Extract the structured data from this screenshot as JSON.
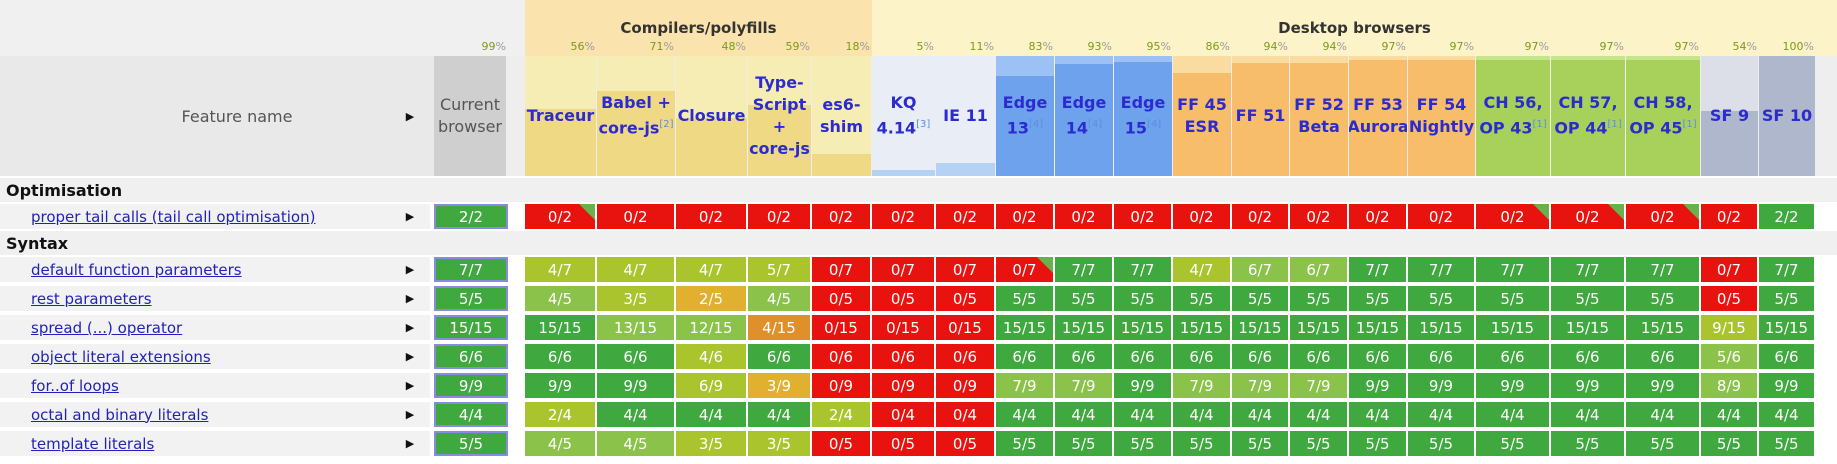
{
  "header": {
    "feature_name_label": "Feature name",
    "feature_name_arrow": "▶",
    "current_browser_label": "Current browser",
    "current_browser_pct": "99",
    "pct_symbol": "%",
    "groups": [
      {
        "name": "Compilers/polyfills"
      },
      {
        "name": "Desktop browsers"
      }
    ]
  },
  "columns": [
    {
      "label": "Traceur",
      "sup": "",
      "pct": "56",
      "fill": 0.56
    },
    {
      "label": "Babel + core-js",
      "sup": "[2]",
      "pct": "71",
      "fill": 0.71
    },
    {
      "label": "Closure",
      "sup": "",
      "pct": "48",
      "fill": 0.48
    },
    {
      "label": "Type-Script + core-js",
      "sup": "",
      "pct": "59",
      "fill": 0.59
    },
    {
      "label": "es6-shim",
      "sup": "",
      "pct": "18",
      "fill": 0.18
    },
    {
      "label": "KQ 4.14",
      "sup": "[3]",
      "pct": "5",
      "fill": 0.05
    },
    {
      "label": "IE 11",
      "sup": "",
      "pct": "11",
      "fill": 0.11
    },
    {
      "label": "Edge 13",
      "sup": "[4]",
      "pct": "83",
      "fill": 0.83
    },
    {
      "label": "Edge 14",
      "sup": "[4]",
      "pct": "93",
      "fill": 0.93
    },
    {
      "label": "Edge 15",
      "sup": "[4]",
      "pct": "95",
      "fill": 0.95
    },
    {
      "label": "FF 45 ESR",
      "sup": "",
      "pct": "86",
      "fill": 0.86
    },
    {
      "label": "FF 51",
      "sup": "",
      "pct": "94",
      "fill": 0.94
    },
    {
      "label": "FF 52 Beta",
      "sup": "",
      "pct": "94",
      "fill": 0.94
    },
    {
      "label": "FF 53 Aurora",
      "sup": "",
      "pct": "97",
      "fill": 0.97
    },
    {
      "label": "FF 54 Nightly",
      "sup": "",
      "pct": "97",
      "fill": 0.97
    },
    {
      "label": "CH 56, OP 43",
      "sup": "[1]",
      "pct": "97",
      "fill": 0.97
    },
    {
      "label": "CH 57, OP 44",
      "sup": "[1]",
      "pct": "97",
      "fill": 0.97
    },
    {
      "label": "CH 58, OP 45",
      "sup": "[1]",
      "pct": "97",
      "fill": 0.97
    },
    {
      "label": "SF 9",
      "sup": "",
      "pct": "54",
      "fill": 0.54
    },
    {
      "label": "SF 10",
      "sup": "",
      "pct": "100",
      "fill": 1.0
    }
  ],
  "sections": [
    {
      "title": "Optimisation",
      "rows": [
        {
          "name": "proper tail calls (tail call optimisation)",
          "current": "2/2",
          "values": [
            "0/2",
            "0/2",
            "0/2",
            "0/2",
            "0/2",
            "0/2",
            "0/2",
            "0/2",
            "0/2",
            "0/2",
            "0/2",
            "0/2",
            "0/2",
            "0/2",
            "0/2",
            "0/2",
            "0/2",
            "0/2",
            "0/2",
            "2/2"
          ]
        }
      ]
    },
    {
      "title": "Syntax",
      "rows": [
        {
          "name": "default function parameters",
          "current": "7/7",
          "values": [
            "4/7",
            "4/7",
            "4/7",
            "5/7",
            "0/7",
            "0/7",
            "0/7",
            "0/7",
            "7/7",
            "7/7",
            "4/7",
            "6/7",
            "6/7",
            "7/7",
            "7/7",
            "7/7",
            "7/7",
            "7/7",
            "0/7",
            "7/7"
          ]
        },
        {
          "name": "rest parameters",
          "current": "5/5",
          "values": [
            "4/5",
            "3/5",
            "2/5",
            "4/5",
            "0/5",
            "0/5",
            "0/5",
            "5/5",
            "5/5",
            "5/5",
            "5/5",
            "5/5",
            "5/5",
            "5/5",
            "5/5",
            "5/5",
            "5/5",
            "5/5",
            "0/5",
            "5/5"
          ]
        },
        {
          "name": "spread (...) operator",
          "current": "15/15",
          "values": [
            "15/15",
            "13/15",
            "12/15",
            "4/15",
            "0/15",
            "0/15",
            "0/15",
            "15/15",
            "15/15",
            "15/15",
            "15/15",
            "15/15",
            "15/15",
            "15/15",
            "15/15",
            "15/15",
            "15/15",
            "15/15",
            "9/15",
            "15/15"
          ]
        },
        {
          "name": "object literal extensions",
          "current": "6/6",
          "values": [
            "6/6",
            "6/6",
            "4/6",
            "6/6",
            "0/6",
            "0/6",
            "0/6",
            "6/6",
            "6/6",
            "6/6",
            "6/6",
            "6/6",
            "6/6",
            "6/6",
            "6/6",
            "6/6",
            "6/6",
            "6/6",
            "5/6",
            "6/6"
          ]
        },
        {
          "name": "for..of loops",
          "current": "9/9",
          "values": [
            "9/9",
            "9/9",
            "6/9",
            "3/9",
            "0/9",
            "0/9",
            "0/9",
            "7/9",
            "7/9",
            "9/9",
            "7/9",
            "7/9",
            "7/9",
            "9/9",
            "9/9",
            "9/9",
            "9/9",
            "9/9",
            "8/9",
            "9/9"
          ]
        },
        {
          "name": "octal and binary literals",
          "current": "4/4",
          "values": [
            "2/4",
            "4/4",
            "4/4",
            "4/4",
            "2/4",
            "0/4",
            "0/4",
            "4/4",
            "4/4",
            "4/4",
            "4/4",
            "4/4",
            "4/4",
            "4/4",
            "4/4",
            "4/4",
            "4/4",
            "4/4",
            "4/4",
            "4/4"
          ]
        },
        {
          "name": "template literals",
          "current": "5/5",
          "values": [
            "4/5",
            "4/5",
            "3/5",
            "3/5",
            "0/5",
            "0/5",
            "0/5",
            "5/5",
            "5/5",
            "5/5",
            "5/5",
            "5/5",
            "5/5",
            "5/5",
            "5/5",
            "5/5",
            "5/5",
            "5/5",
            "5/5",
            "5/5"
          ]
        }
      ]
    }
  ],
  "colors": {
    "group_compilers_bg": "#fbe3ad",
    "group_desktop_bg": "#fdf3c8",
    "header_compilers_bg": "#f6edb5",
    "header_ie_bg": "#e9eef6",
    "header_edge_bg": "#9cc1f5",
    "header_ff_bg": "#fbdca0",
    "header_ch_bg": "#c6e58a",
    "header_sf_bg": "#dcdfe8",
    "yes": "#3fa83f",
    "no": "#e8120f",
    "partial": "#aac42e"
  }
}
